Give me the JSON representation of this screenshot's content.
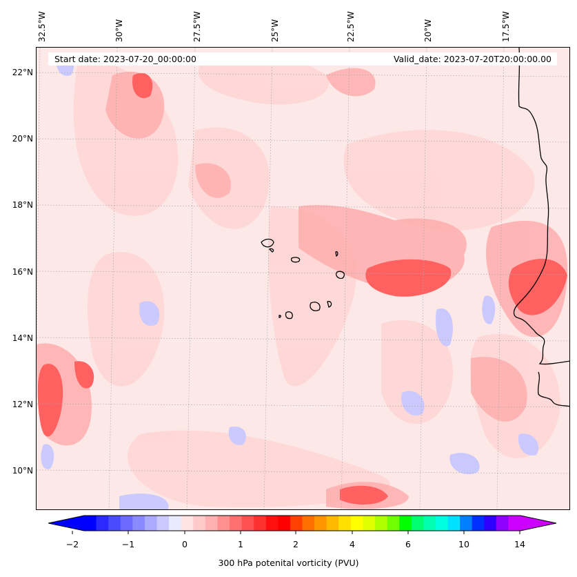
{
  "map": {
    "start_date": "Start date: 2023-07-20_00:00:00",
    "valid_date": "Valid_date: 2023-07-20T20:00:00.00",
    "lon_labels": [
      "32.5°W",
      "30°W",
      "27.5°W",
      "25°W",
      "22.5°W",
      "20°W",
      "17.5°W"
    ],
    "lat_labels": [
      "22°N",
      "20°N",
      "18°N",
      "16°N",
      "14°N",
      "12°N",
      "10°N"
    ]
  },
  "colorbar": {
    "title": "300 hPa potenital vorticity (PVU)",
    "ticks": [
      "−2",
      "−1",
      "0",
      "1",
      "2",
      "4",
      "6",
      "10",
      "14"
    ],
    "colors": [
      "#0000ff",
      "#2a2aff",
      "#4a4aff",
      "#6b6bff",
      "#8a8aff",
      "#aaaaff",
      "#cacaff",
      "#eaeaff",
      "#ffe4e4",
      "#ffcaca",
      "#ffb0b0",
      "#ff9090",
      "#ff7070",
      "#ff5050",
      "#ff3030",
      "#ff1010",
      "#ff0000",
      "#ff4000",
      "#ff7000",
      "#ff9500",
      "#ffba00",
      "#ffe000",
      "#ffff00",
      "#e0ff00",
      "#b0ff00",
      "#70ff00",
      "#00ff00",
      "#00ff70",
      "#00ffb0",
      "#00ffe0",
      "#00e0ff",
      "#0080ff",
      "#0030ff",
      "#3000ff",
      "#9000ff",
      "#cc00ff"
    ]
  }
}
